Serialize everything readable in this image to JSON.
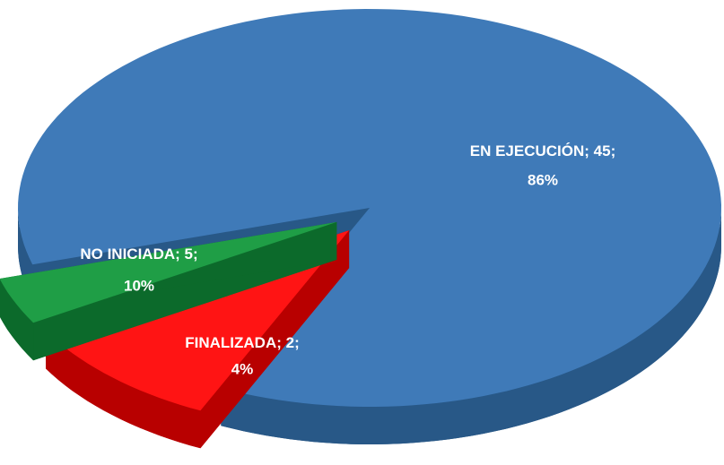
{
  "chart_data": {
    "type": "pie3d",
    "categories": [
      "NO INICIADA",
      "FINALIZADA",
      "EN EJECUCIÓN"
    ],
    "values": [
      5,
      2,
      45
    ],
    "percent_labels": [
      "10%",
      "4%",
      "86%"
    ],
    "label_separator": ";",
    "colors": [
      "#ff1414",
      "#1f9e46",
      "#3f7ab8"
    ],
    "side_colors": [
      "#b80000",
      "#0c6a2b",
      "#285887"
    ]
  }
}
